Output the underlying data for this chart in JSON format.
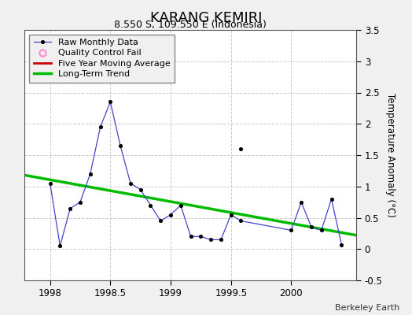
{
  "title": "KARANG KEMIRI",
  "subtitle": "8.550 S, 109.550 E (Indonesia)",
  "ylabel": "Temperature Anomaly (°C)",
  "credit": "Berkeley Earth",
  "xlim": [
    1997.79,
    2000.54
  ],
  "ylim": [
    -0.5,
    3.5
  ],
  "xticks": [
    1998,
    1998.5,
    1999,
    1999.5,
    2000
  ],
  "yticks": [
    -0.5,
    0.0,
    0.5,
    1.0,
    1.5,
    2.0,
    2.5,
    3.0,
    3.5
  ],
  "background_color": "#f0f0f0",
  "plot_bg": "#ffffff",
  "raw_x": [
    1998.0,
    1998.083,
    1998.167,
    1998.25,
    1998.333,
    1998.417,
    1998.5,
    1998.583,
    1998.667,
    1998.75,
    1998.833,
    1998.917,
    1999.0,
    1999.083,
    1999.167,
    1999.25,
    1999.333,
    1999.417,
    1999.5,
    1999.583,
    2000.0,
    2000.083,
    2000.167,
    2000.25,
    2000.333,
    2000.417
  ],
  "raw_y": [
    1.05,
    0.05,
    0.65,
    0.75,
    1.2,
    1.95,
    2.35,
    1.65,
    1.05,
    0.95,
    0.7,
    0.45,
    0.55,
    0.7,
    0.2,
    0.2,
    0.15,
    0.15,
    0.55,
    0.45,
    0.3,
    0.75,
    0.35,
    0.3,
    0.8,
    0.07
  ],
  "isolated_x": [
    1999.583
  ],
  "isolated_y": [
    1.6
  ],
  "trend_x": [
    1997.79,
    2000.54
  ],
  "trend_y": [
    1.18,
    0.22
  ],
  "raw_line_color": "#4444cc",
  "raw_marker_color": "#000000",
  "qc_marker_color": "#ff88cc",
  "moving_avg_color": "#cc0000",
  "trend_color": "#00bb00",
  "legend_bg": "#f0f0f0",
  "title_fontsize": 13,
  "subtitle_fontsize": 9,
  "label_fontsize": 8.5,
  "tick_fontsize": 8.5,
  "credit_fontsize": 8
}
